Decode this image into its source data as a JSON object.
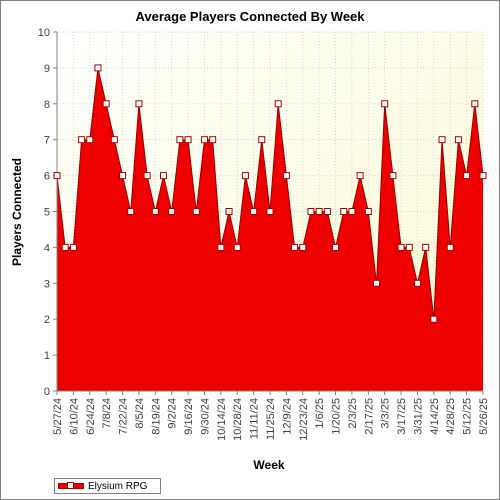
{
  "chart_data": {
    "type": "area",
    "title": "Average Players Connected By Week",
    "xlabel": "Week",
    "ylabel": "Players Connected",
    "ylim": [
      0,
      10
    ],
    "yticks": [
      0,
      1,
      2,
      3,
      4,
      5,
      6,
      7,
      8,
      9,
      10
    ],
    "xtick_labels": [
      "5/27/24",
      "6/10/24",
      "6/24/24",
      "7/8/24",
      "7/22/24",
      "8/5/24",
      "8/19/24",
      "9/2/24",
      "9/16/24",
      "9/30/24",
      "10/14/24",
      "10/28/24",
      "11/11/24",
      "11/25/24",
      "12/9/24",
      "12/23/24",
      "1/6/25",
      "1/20/25",
      "2/3/25",
      "2/17/25",
      "3/3/25",
      "3/17/25",
      "3/31/25",
      "4/14/25",
      "4/28/25",
      "5/12/25",
      "5/26/25"
    ],
    "grid": true,
    "legend_position": "bottom-left",
    "series": [
      {
        "name": "Elysium RPG",
        "color": "#ee0000",
        "values": [
          6,
          4,
          4,
          7,
          7,
          9,
          8,
          7,
          6,
          5,
          8,
          6,
          5,
          6,
          5,
          7,
          7,
          5,
          7,
          7,
          4,
          5,
          4,
          6,
          5,
          7,
          5,
          8,
          6,
          4,
          4,
          5,
          5,
          5,
          4,
          5,
          5,
          6,
          5,
          3,
          8,
          6,
          4,
          4,
          3,
          4,
          2,
          7,
          4,
          7,
          6,
          8,
          6
        ]
      }
    ]
  }
}
